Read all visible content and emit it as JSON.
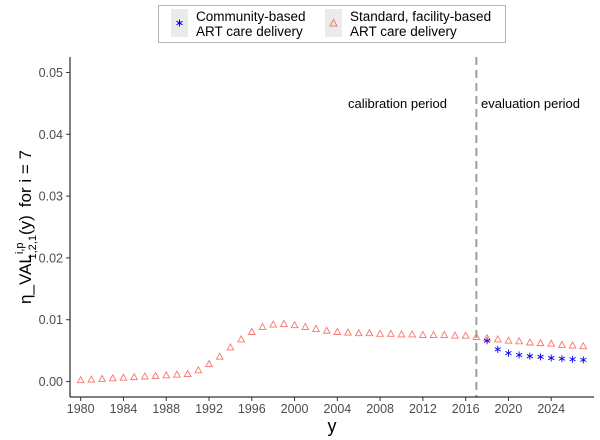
{
  "chart_data": {
    "type": "scatter",
    "xlabel": "y",
    "ylabel_parts": {
      "eta": "η",
      "underscore_val": "_VAL",
      "superscript": "i,p",
      "subscript": "1,2,1",
      "arg": "(y)",
      "for_text": "for i = 7"
    },
    "xlim": [
      1979,
      2028
    ],
    "ylim": [
      -0.0025,
      0.0525
    ],
    "x_ticks": [
      1980,
      1984,
      1988,
      1992,
      1996,
      2000,
      2004,
      2008,
      2012,
      2016,
      2020,
      2024
    ],
    "y_ticks": [
      0.0,
      0.01,
      0.02,
      0.03,
      0.04,
      0.05
    ],
    "y_tick_labels": [
      "0.00",
      "0.01",
      "0.02",
      "0.03",
      "0.04",
      "0.05"
    ],
    "vline_x": 2017,
    "annotations": {
      "left": "calibration period",
      "right": "evaluation period"
    },
    "series": [
      {
        "name": "Standard, facility-based ART care delivery",
        "name_lines": [
          "Standard, facility-based",
          "ART care delivery"
        ],
        "marker": "triangle",
        "color": "#f8766d",
        "x": [
          1980,
          1981,
          1982,
          1983,
          1984,
          1985,
          1986,
          1987,
          1988,
          1989,
          1990,
          1991,
          1992,
          1993,
          1994,
          1995,
          1996,
          1997,
          1998,
          1999,
          2000,
          2001,
          2002,
          2003,
          2004,
          2005,
          2006,
          2007,
          2008,
          2009,
          2010,
          2011,
          2012,
          2013,
          2014,
          2015,
          2016,
          2017,
          2018,
          2019,
          2020,
          2021,
          2022,
          2023,
          2024,
          2025,
          2026,
          2027
        ],
        "values": [
          0.0002,
          0.0003,
          0.0004,
          0.0005,
          0.0006,
          0.0007,
          0.0008,
          0.0009,
          0.001,
          0.0011,
          0.0012,
          0.0018,
          0.0028,
          0.004,
          0.0055,
          0.0068,
          0.008,
          0.0088,
          0.0092,
          0.0093,
          0.0091,
          0.0088,
          0.0085,
          0.0082,
          0.008,
          0.0079,
          0.0078,
          0.0078,
          0.0077,
          0.0077,
          0.0076,
          0.0076,
          0.0075,
          0.0075,
          0.0075,
          0.0074,
          0.0074,
          0.0072,
          0.007,
          0.0068,
          0.0066,
          0.0065,
          0.0063,
          0.0062,
          0.0061,
          0.0059,
          0.0058,
          0.0057
        ]
      },
      {
        "name": "Community-based ART care delivery",
        "name_lines": [
          "Community-based",
          "ART care delivery"
        ],
        "marker": "asterisk",
        "color": "#0000ff",
        "x": [
          2018,
          2019,
          2020,
          2021,
          2022,
          2023,
          2024,
          2025,
          2026,
          2027
        ],
        "values": [
          0.0066,
          0.0052,
          0.0046,
          0.0043,
          0.0041,
          0.004,
          0.0038,
          0.0037,
          0.0036,
          0.0035
        ]
      }
    ]
  }
}
